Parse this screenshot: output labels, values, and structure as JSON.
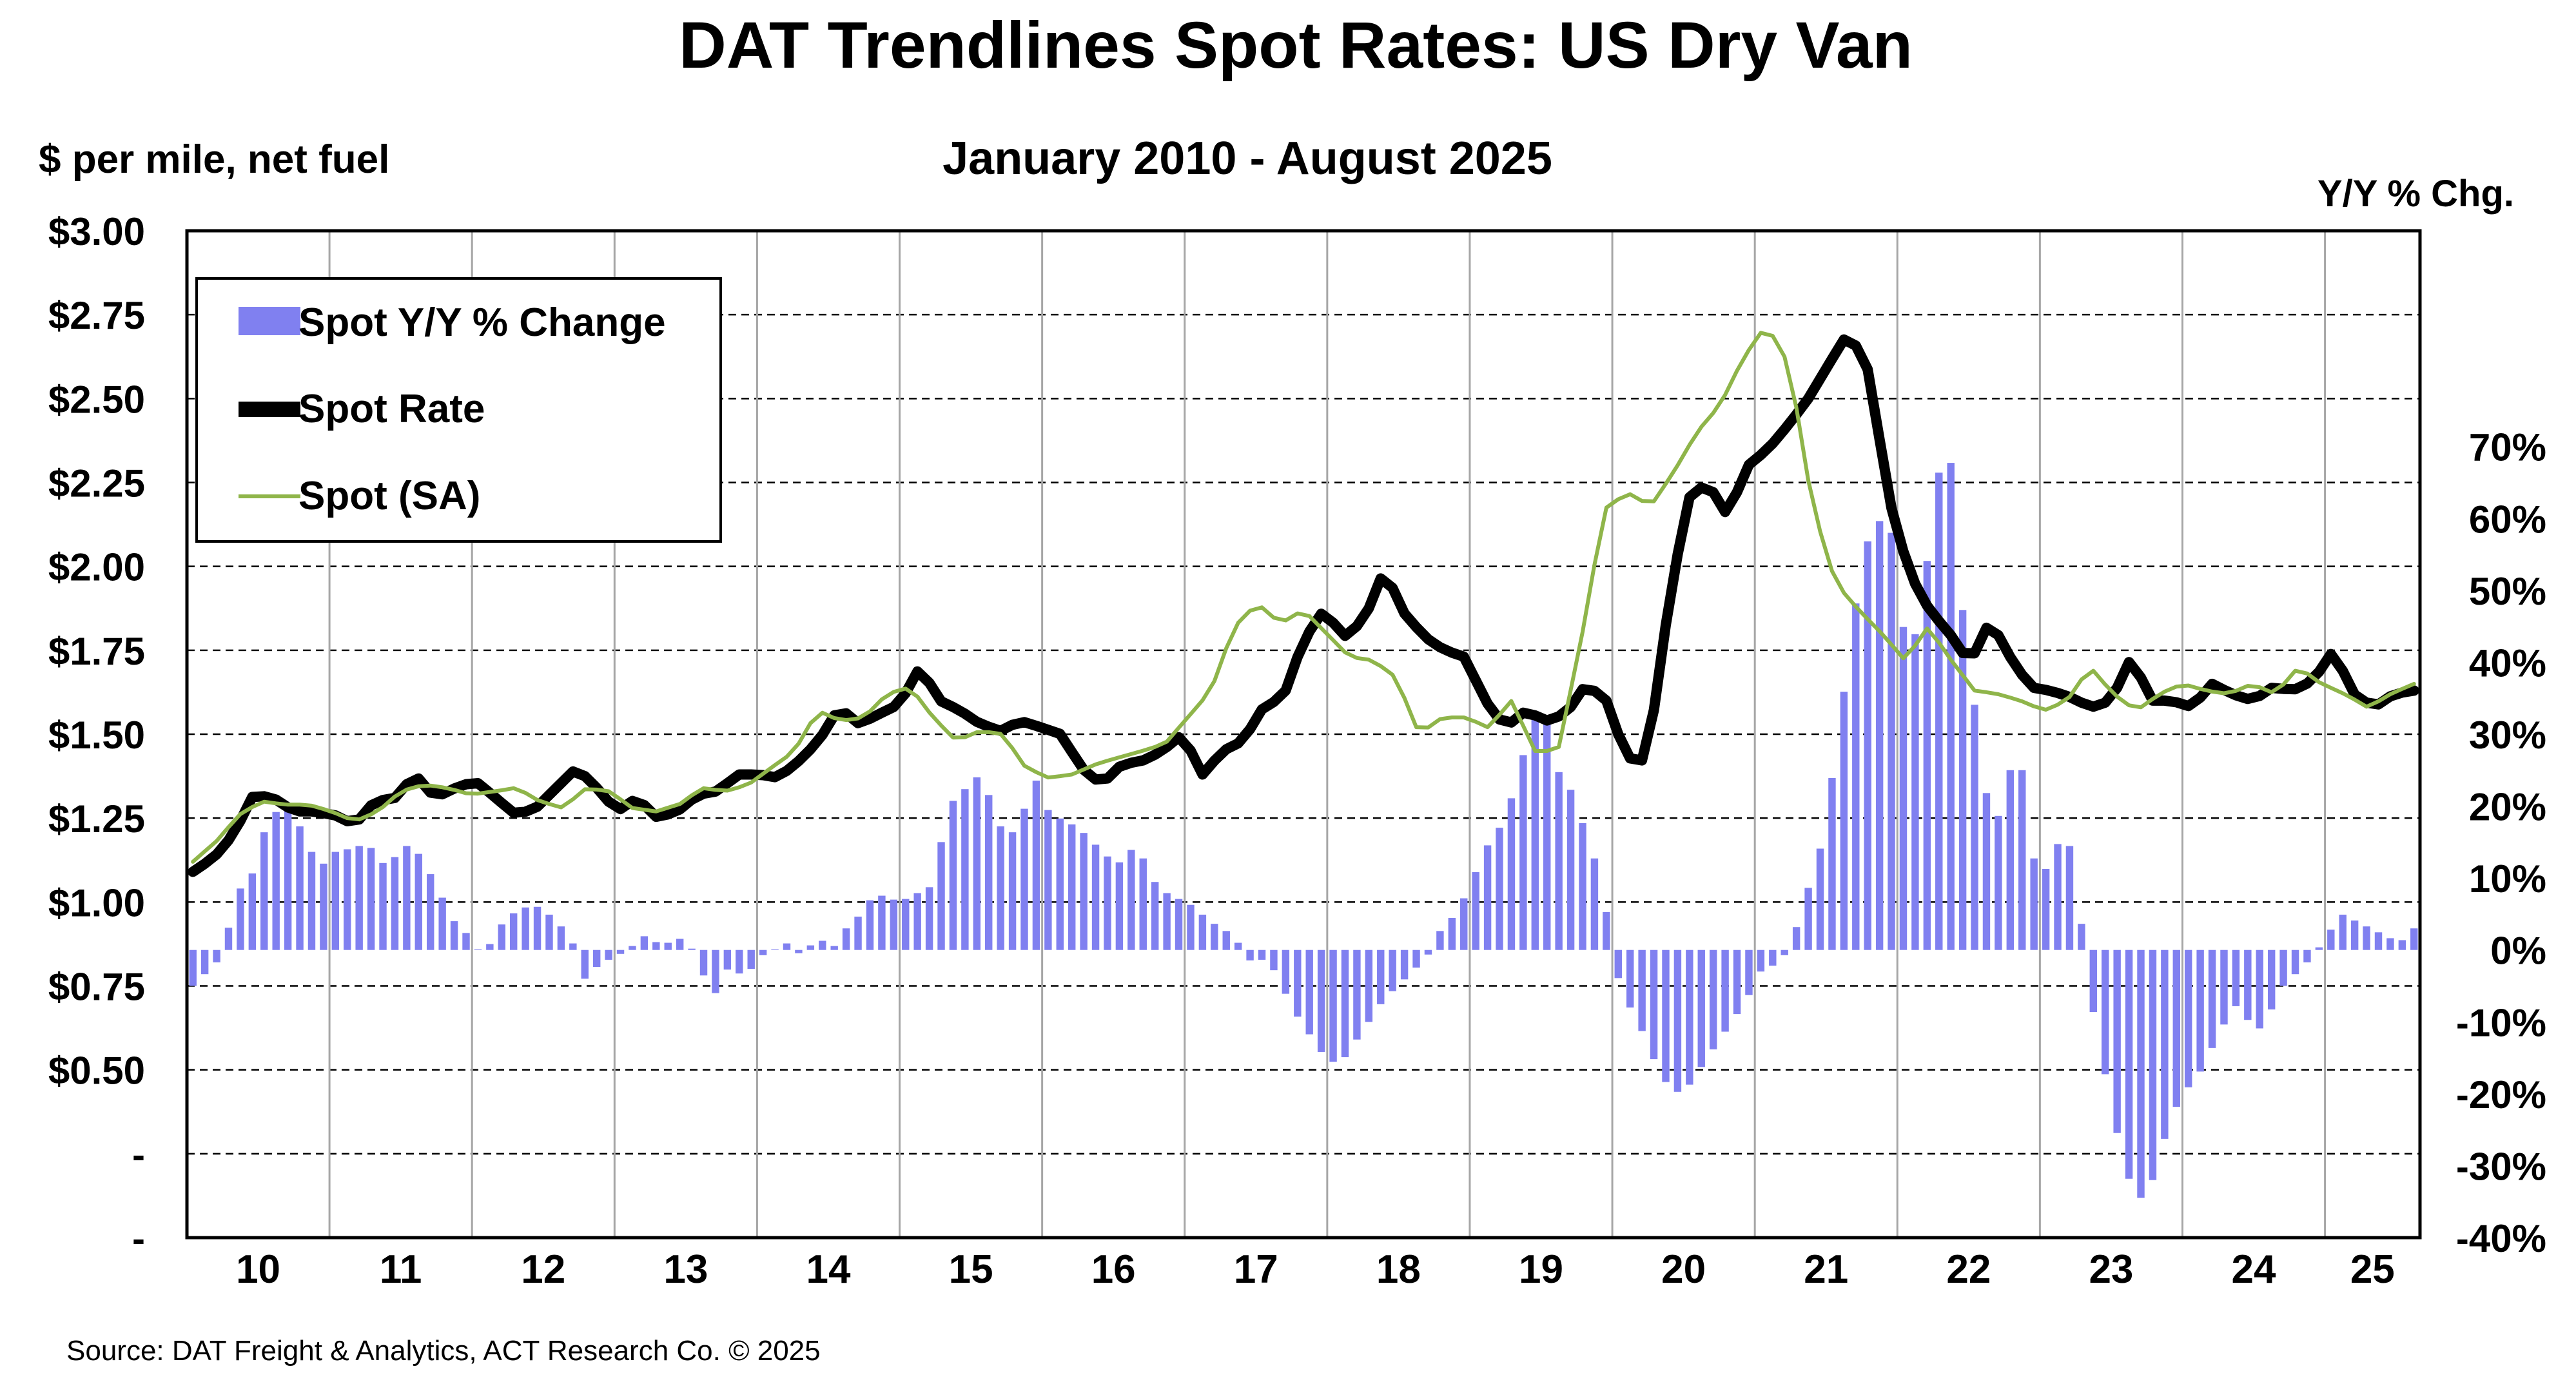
{
  "chart_data": {
    "type": "bar+line",
    "title": "DAT Trendlines Spot Rates: US Dry Van",
    "subtitle": "January 2010 - August 2025",
    "left_axis_label": "$ per mile, net fuel",
    "right_axis_label": "Y/Y % Chg.",
    "source": "Source: DAT Freight & Analytics, ACT Research Co. © 2025",
    "left_ticks": [
      "$3.00",
      "$2.75",
      "$2.50",
      "$2.25",
      "$2.00",
      "$1.75",
      "$1.50",
      "$1.25",
      "$1.00",
      "$0.75",
      "$0.50",
      "-",
      "-"
    ],
    "left_tick_values": [
      3.0,
      2.75,
      2.5,
      2.25,
      2.0,
      1.75,
      1.5,
      1.25,
      1.0,
      0.75,
      0.5,
      0.25,
      0.0
    ],
    "right_ticks": [
      "70%",
      "60%",
      "50%",
      "40%",
      "30%",
      "20%",
      "10%",
      "0%",
      "-10%",
      "-20%",
      "-30%",
      "-40%"
    ],
    "right_tick_values": [
      70,
      60,
      50,
      40,
      30,
      20,
      10,
      0,
      -10,
      -20,
      -30,
      -40
    ],
    "left_ylim": [
      0.0,
      3.0
    ],
    "right_ylim": [
      -40,
      100
    ],
    "x_labels": [
      "10",
      "11",
      "12",
      "13",
      "14",
      "15",
      "16",
      "17",
      "18",
      "19",
      "20",
      "21",
      "22",
      "23",
      "24",
      "25"
    ],
    "legend": {
      "placement": "top-left",
      "items": [
        {
          "label": "Spot Y/Y % Change",
          "kind": "bar",
          "color": "#8080f0"
        },
        {
          "label": "Spot Rate",
          "kind": "line",
          "color": "#000000"
        },
        {
          "label": "Spot (SA)",
          "kind": "line",
          "color": "#8fb54a"
        }
      ]
    },
    "series": [
      {
        "name": "Spot Y/Y % Change",
        "axis": "right",
        "start": "2010-01",
        "annual_anchors": [
          [
            -5,
            -3,
            -1,
            8,
            10,
            17,
            20,
            19,
            14,
            12,
            14,
            14,
            15,
            12,
            13,
            15
          ],
          [
            12,
            8,
            4,
            2,
            -1,
            3,
            5,
            6,
            6,
            4,
            2,
            -4,
            -2,
            -1,
            0,
            2
          ],
          [
            1,
            1,
            2,
            -3,
            -6,
            -2,
            -4,
            -1,
            0,
            1,
            -1,
            2,
            0
          ],
          [
            3,
            5,
            8,
            7,
            7,
            8,
            9,
            20,
            22,
            24,
            21,
            15,
            18,
            24
          ],
          [
            19,
            18,
            17,
            15,
            13,
            12,
            15,
            10,
            8,
            7,
            6,
            4,
            3,
            1,
            -2
          ],
          [
            -1,
            -5,
            -9,
            -12,
            -15,
            -16,
            -13,
            -10,
            -7,
            -5,
            -3,
            -1,
            3
          ],
          [
            5,
            9,
            14,
            17,
            22,
            30,
            35,
            25,
            22,
            16,
            10,
            -3,
            -8
          ],
          [
            -12,
            -17,
            -20,
            -19,
            -16,
            -13,
            -10,
            -7,
            -3,
            -2,
            0,
            7
          ],
          [
            13,
            25,
            40,
            55,
            60,
            58,
            42,
            45,
            65,
            70,
            45,
            30,
            15,
            25,
            25,
            10,
            12,
            18
          ],
          [
            5,
            -10,
            -20,
            -30,
            -35,
            -32,
            -25,
            -20,
            -18,
            -14,
            -10,
            -7
          ],
          [
            -12,
            -9,
            -5,
            -3,
            -1,
            2,
            5,
            4,
            3,
            2,
            1,
            3
          ]
        ]
      },
      {
        "name": "Spot Rate",
        "axis": "left",
        "start": "2010-01",
        "annual_anchors": [
          [
            1.09,
            1.13,
            1.2,
            1.32,
            1.31,
            1.27,
            1.27,
            1.26,
            1.23,
            1.3,
            1.31,
            1.38,
            1.31,
            1.34,
            1.36,
            1.31
          ],
          [
            1.26,
            1.28,
            1.34,
            1.4,
            1.34,
            1.27,
            1.31,
            1.25,
            1.27,
            1.32,
            1.33,
            1.38,
            1.38,
            1.37
          ],
          [
            1.42,
            1.48,
            1.58,
            1.53,
            1.56,
            1.59,
            1.7,
            1.6,
            1.57,
            1.53,
            1.51,
            1.54,
            1.52,
            1.5
          ],
          [
            1.4,
            1.35,
            1.41,
            1.42,
            1.45,
            1.5,
            1.38,
            1.45,
            1.48,
            1.58,
            1.61,
            1.78,
            1.87,
            1.79
          ],
          [
            1.84,
            1.99,
            1.86,
            1.79,
            1.75,
            1.73,
            1.6,
            1.52,
            1.57,
            1.54,
            1.56,
            1.65,
            1.6
          ],
          [
            1.43,
            1.42,
            1.85,
            2.2,
            2.25,
            2.15,
            2.3,
            2.35,
            2.42,
            2.5,
            2.6,
            2.7,
            2.58
          ],
          [
            2.2,
            1.98,
            1.87,
            1.8,
            1.71,
            1.84,
            1.73,
            1.64,
            1.63,
            1.61,
            1.58,
            1.6,
            1.73,
            1.6
          ],
          [
            1.6,
            1.58,
            1.65,
            1.62,
            1.6,
            1.64,
            1.63,
            1.66,
            1.75,
            1.62,
            1.58,
            1.62,
            1.63
          ]
        ]
      },
      {
        "name": "Spot (SA)",
        "axis": "left",
        "start": "2010-01",
        "annual_anchors": [
          [
            1.12,
            1.18,
            1.26,
            1.3,
            1.29,
            1.29,
            1.27,
            1.24,
            1.27,
            1.33,
            1.35,
            1.34,
            1.32,
            1.33,
            1.34,
            1.3
          ],
          [
            1.28,
            1.34,
            1.33,
            1.28,
            1.27,
            1.29,
            1.34,
            1.33,
            1.35,
            1.4
          ],
          [
            1.45,
            1.57,
            1.54,
            1.55,
            1.62,
            1.64,
            1.55,
            1.48,
            1.51,
            1.5
          ],
          [
            1.4,
            1.37,
            1.38,
            1.41,
            1.43,
            1.45,
            1.47,
            1.55,
            1.63,
            1.82,
            1.89,
            1.83,
            1.87,
            1.8
          ],
          [
            1.73,
            1.72,
            1.67,
            1.5,
            1.55,
            1.55,
            1.52,
            1.6,
            1.45,
            1.45
          ],
          [
            1.78,
            2.17,
            2.22,
            2.18,
            2.28,
            2.4,
            2.48,
            2.62,
            2.72,
            2.6
          ],
          [
            2.18,
            1.95,
            1.87,
            1.8,
            1.72,
            1.82,
            1.72,
            1.63,
            1.62,
            1.6,
            1.57,
            1.6,
            1.7,
            1.62
          ],
          [
            1.57,
            1.62,
            1.65,
            1.63,
            1.62,
            1.65,
            1.62,
            1.7,
            1.65,
            1.62,
            1.58,
            1.62,
            1.65
          ]
        ]
      }
    ]
  }
}
